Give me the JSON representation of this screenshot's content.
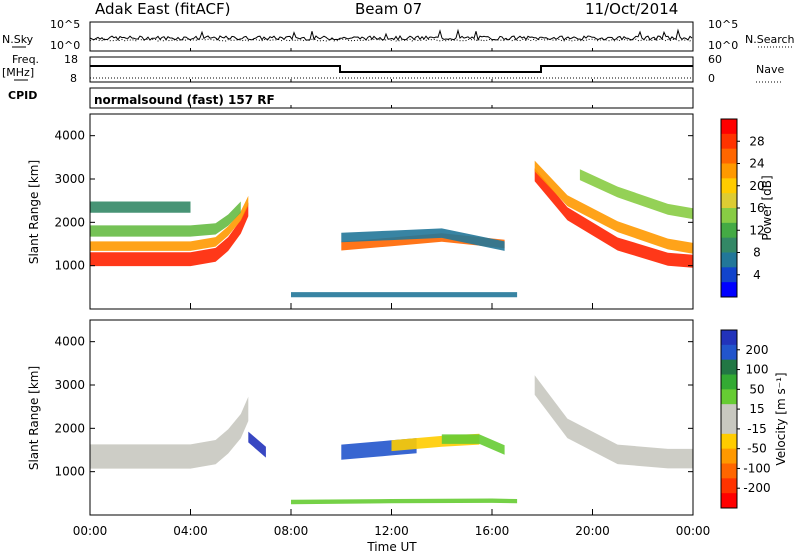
{
  "header": {
    "station": "Adak East (fitACF)",
    "beam": "Beam 07",
    "date": "11/Oct/2014"
  },
  "strip_panels": {
    "nsky_label": "N.Sky",
    "nsearch_label": "N.Search",
    "noise_ticks": [
      "10^5",
      "10^0"
    ],
    "freq_label": "Freq.",
    "freq_unit": "[MHz]",
    "freq_ticks": [
      "18",
      "8"
    ],
    "nave_label": "Nave",
    "nave_ticks": [
      "60",
      "0"
    ],
    "cpid_label": "CPID",
    "cpid_value": "normalsound (fast) 157 RF"
  },
  "colorbars": {
    "power": {
      "label": "Power [dB]",
      "ticks": [
        "28",
        "24",
        "20",
        "16",
        "12",
        "8",
        "4"
      ],
      "colors": [
        "#ff0000",
        "#ff3300",
        "#ff6600",
        "#ff9900",
        "#ffcc00",
        "#ddcc33",
        "#88cc44",
        "#44aa44",
        "#338866",
        "#227799",
        "#1144cc",
        "#0000ff"
      ]
    },
    "velocity": {
      "label": "Velocity [m s⁻¹]",
      "ticks": [
        "200",
        "100",
        "50",
        "15",
        "-15",
        "-50",
        "-100",
        "-200"
      ],
      "colors": [
        "#2233bb",
        "#2255cc",
        "#227744",
        "#33aa33",
        "#66cc33",
        "#c8c8c0",
        "#c8c8c0",
        "#ffcc00",
        "#ff9900",
        "#ff6600",
        "#ff3300",
        "#ff0000"
      ]
    }
  },
  "x_axis": {
    "label": "Time UT",
    "ticks": [
      "00:00",
      "04:00",
      "08:00",
      "12:00",
      "16:00",
      "20:00",
      "00:00"
    ]
  },
  "chart_data": [
    {
      "type": "heatmap",
      "name": "power",
      "ylabel": "Slant Range [km]",
      "xlim": [
        0,
        24
      ],
      "ylim": [
        0,
        4500
      ],
      "yticks": [
        "1000",
        "2000",
        "3000",
        "4000"
      ],
      "regions": [
        {
          "x": [
            0.0,
            4.0,
            5.0,
            5.5,
            6.0,
            6.3
          ],
          "y": [
            1150,
            1150,
            1250,
            1500,
            1900,
            2300
          ],
          "dy": 320,
          "color": "#ff2200"
        },
        {
          "x": [
            0.0,
            4.0,
            5.0,
            5.5,
            6.0,
            6.3
          ],
          "y": [
            1450,
            1450,
            1550,
            1800,
            2150,
            2500
          ],
          "dy": 220,
          "color": "#ff9900"
        },
        {
          "x": [
            0.0,
            4.0,
            5.0,
            5.5,
            6.0
          ],
          "y": [
            1800,
            1800,
            1850,
            2050,
            2350
          ],
          "dy": 260,
          "color": "#66bb44"
        },
        {
          "x": [
            0.0,
            4.0
          ],
          "y": [
            2350,
            2350
          ],
          "dy": 260,
          "color": "#338866"
        },
        {
          "x": [
            10.0,
            12.0,
            14.0,
            16.5
          ],
          "y": [
            1450,
            1550,
            1650,
            1500
          ],
          "dy": 200,
          "color": "#ff6600"
        },
        {
          "x": [
            10.0,
            12.0,
            14.0,
            16.5
          ],
          "y": [
            1650,
            1700,
            1750,
            1450
          ],
          "dy": 220,
          "color": "#227799"
        },
        {
          "x": [
            17.7,
            19.0,
            21.0,
            23.0,
            24.0
          ],
          "y": [
            3100,
            2200,
            1500,
            1150,
            1100
          ],
          "dy": 300,
          "color": "#ff2200"
        },
        {
          "x": [
            17.7,
            19.0,
            21.0,
            23.0,
            24.0
          ],
          "y": [
            3300,
            2500,
            1900,
            1500,
            1400
          ],
          "dy": 250,
          "color": "#ff9900"
        },
        {
          "x": [
            19.5,
            21.0,
            23.0,
            24.0
          ],
          "y": [
            3100,
            2700,
            2300,
            2200
          ],
          "dy": 250,
          "color": "#88cc44"
        },
        {
          "x": [
            8.0,
            12.0,
            16.0,
            17.0
          ],
          "y": [
            330,
            330,
            330,
            330
          ],
          "dy": 120,
          "color": "#227799"
        }
      ]
    },
    {
      "type": "heatmap",
      "name": "velocity",
      "ylabel": "Slant Range [km]",
      "xlim": [
        0,
        24
      ],
      "ylim": [
        0,
        4500
      ],
      "yticks": [
        "1000",
        "2000",
        "3000",
        "4000"
      ],
      "regions": [
        {
          "x": [
            0.0,
            4.0,
            5.0,
            5.5,
            6.0,
            6.3
          ],
          "y": [
            1350,
            1350,
            1450,
            1700,
            2050,
            2450
          ],
          "dy": 560,
          "color": "#c8c8c0"
        },
        {
          "x": [
            6.3,
            7.0
          ],
          "y": [
            1800,
            1450
          ],
          "dy": 250,
          "color": "#2233bb"
        },
        {
          "x": [
            10.0,
            12.0,
            13.0
          ],
          "y": [
            1450,
            1550,
            1600
          ],
          "dy": 350,
          "color": "#2255cc"
        },
        {
          "x": [
            12.0,
            14.0,
            15.5
          ],
          "y": [
            1600,
            1700,
            1750
          ],
          "dy": 250,
          "color": "#ffcc00"
        },
        {
          "x": [
            14.0,
            15.5,
            16.5
          ],
          "y": [
            1750,
            1750,
            1500
          ],
          "dy": 220,
          "color": "#66cc33"
        },
        {
          "x": [
            17.7,
            19.0,
            21.0,
            23.0,
            24.0
          ],
          "y": [
            3000,
            2000,
            1400,
            1300,
            1300
          ],
          "dy": 450,
          "color": "#c8c8c0"
        },
        {
          "x": [
            8.0,
            12.0,
            16.0,
            17.0
          ],
          "y": [
            300,
            320,
            330,
            320
          ],
          "dy": 100,
          "color": "#66cc33"
        }
      ]
    }
  ]
}
